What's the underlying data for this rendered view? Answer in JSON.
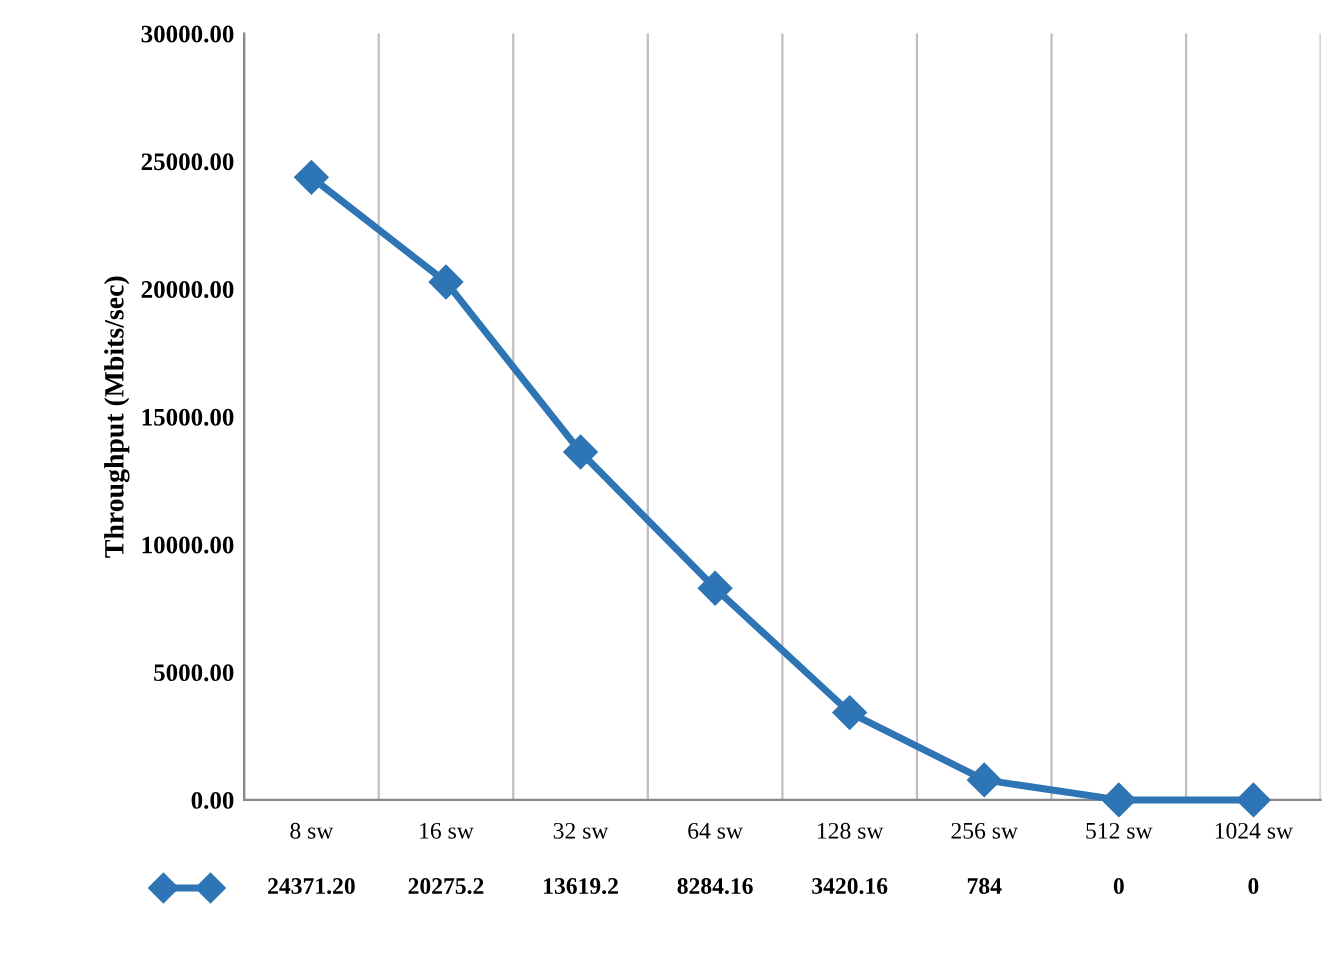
{
  "chart_data": {
    "type": "line",
    "ylabel": "Throughput (Mbits/sec)",
    "categories": [
      "8 sw",
      "16 sw",
      "32 sw",
      "64 sw",
      "128 sw",
      "256 sw",
      "512 sw",
      "1024 sw"
    ],
    "series": [
      {
        "color": "#2e75b6",
        "values": [
          24371.2,
          20275.2,
          13619.2,
          8284.16,
          3420.16,
          784,
          0,
          0
        ],
        "value_labels": [
          "24371.20",
          "20275.2",
          "13619.2",
          "8284.16",
          "3420.16",
          "784",
          "0",
          "0"
        ]
      }
    ],
    "ylim": [
      0,
      30000
    ],
    "yticks": [
      {
        "value": 0,
        "label": "0.00"
      },
      {
        "value": 5000,
        "label": "5000.00"
      },
      {
        "value": 10000,
        "label": "10000.00"
      },
      {
        "value": 15000,
        "label": "15000.00"
      },
      {
        "value": 20000,
        "label": "20000.00"
      },
      {
        "value": 25000,
        "label": "25000.00"
      },
      {
        "value": 30000,
        "label": "30000.00"
      }
    ],
    "grid": "x",
    "marker": "diamond",
    "line_style": "solid"
  }
}
